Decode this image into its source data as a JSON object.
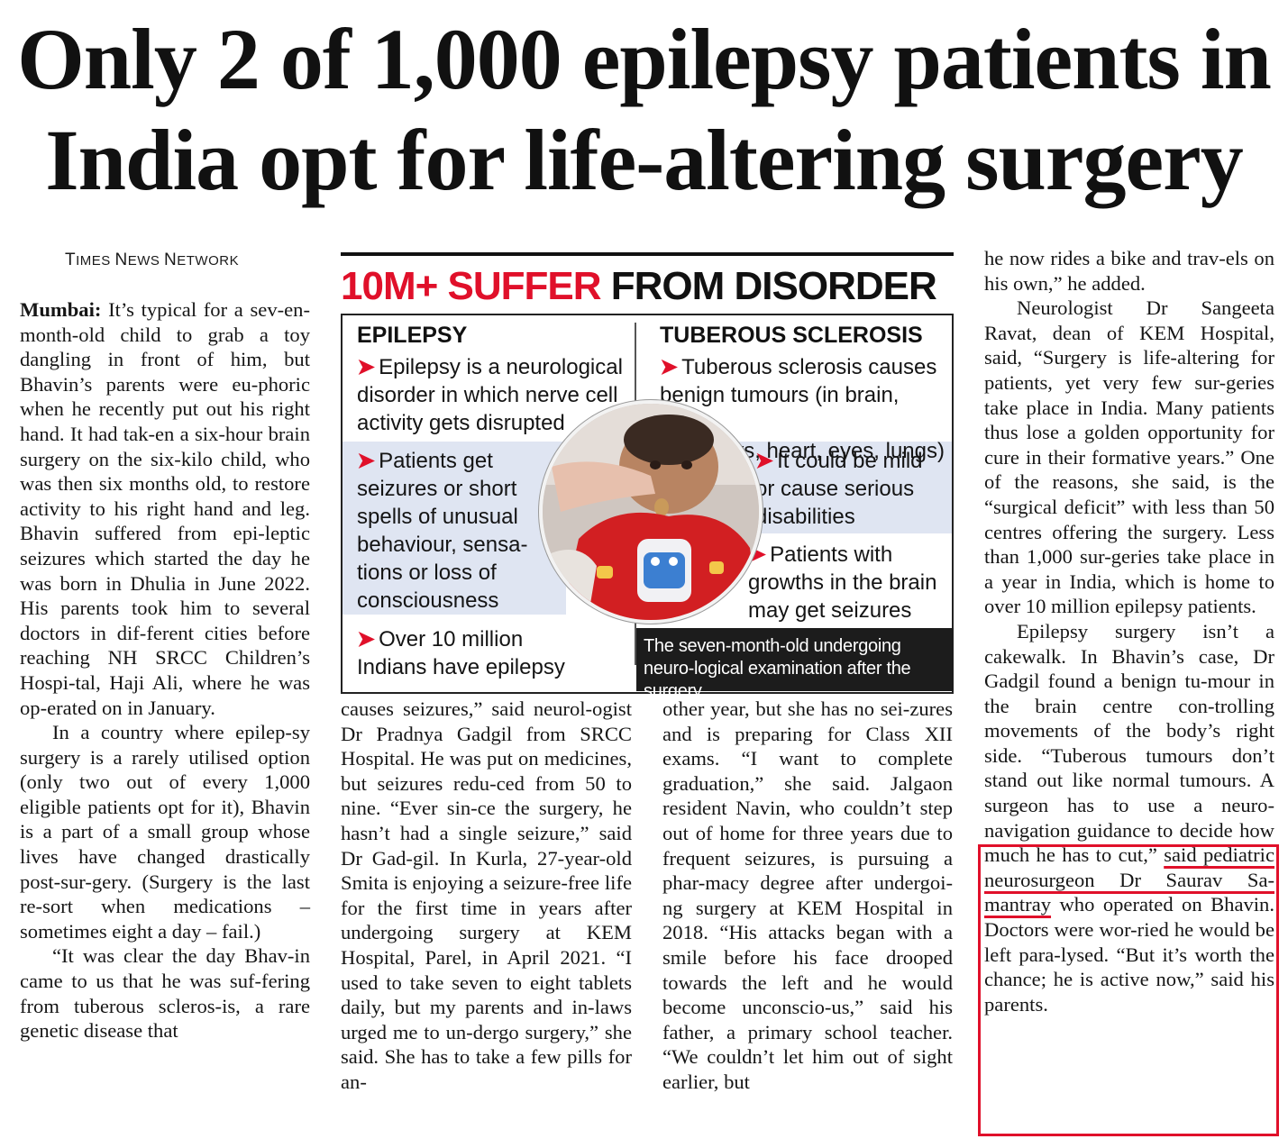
{
  "headline": "Only 2 of 1,000 epilepsy patients in India opt for life-altering surgery",
  "byline": {
    "first": "T",
    "rest": "IMES ",
    "n": "N",
    "ews": "EWS ",
    "w": "N",
    "etwork": "ETWORK"
  },
  "infobox": {
    "title_red": "10M+ SUFFER",
    "title_black": "FROM DISORDER",
    "epilepsy": {
      "heading": "EPILEPSY",
      "point1": "Epilepsy is a neurological disorder in which nerve cell activity gets disrupted",
      "point2": "Patients get seizures or short spells of unusual behaviour, sensa-tions or loss of consciousness",
      "point3": "Over 10 million Indians have epilepsy"
    },
    "ts": {
      "heading": "TUBEROUS SCLEROSIS",
      "point1a": "Tuberous sclerosis causes benign tumours (in brain, skin,",
      "point1b": "kidneys, heart, eyes, lungs)",
      "point2": "It could be mild or cause serious disabilities",
      "point3": "Patients with growths in the brain may get seizures"
    },
    "caption": "The seven-month-old undergoing neuro-logical examination after the surgery"
  },
  "body": {
    "dateline": "Mumbai:",
    "p1": "It’s typical for a sev-en-month-old child to grab a toy dangling in front of him, but Bhavin’s parents were eu-phoric when he recently put out his right hand. It had tak-en a six-hour brain surgery on the six-kilo child, who was then six months old, to restore activity to his right hand and leg. Bhavin suffered from epi-leptic seizures which started the day he was born in Dhulia in June 2022. His parents took him to several doctors in dif-ferent cities before reaching NH SRCC Children’s Hospi-tal, Haji Ali, where he was op-erated on in January.",
    "p2": "In a country where epilep-sy surgery is a rarely utilised option (only two out of every 1,000 eligible patients opt for it), Bhavin is a part of a small group whose lives have changed drastically post-sur-gery. (Surgery is the last re-sort when medications – sometimes eight a day – fail.)",
    "p3": "“It was clear the day Bhav-in came to us that he was suf-fering from tuberous scleros-is, a rare genetic disease that",
    "col2": "causes seizures,” said neurol-ogist Dr Pradnya Gadgil from SRCC Hospital. He was put on medicines, but seizures redu-ced from 50 to nine. “Ever sin-ce the surgery, he hasn’t had a single seizure,” said Dr Gad-gil. In Kurla, 27-year-old Smita is enjoying a seizure-free life for the first time in years after undergoing surgery at KEM Hospital, Parel, in April 2021. “I used to take seven to eight tablets daily, but my parents and in-laws urged me to un-dergo surgery,” she said. She has to take a few pills for an-",
    "col3": "other year, but she has no sei-zures and is preparing for Class XII exams. “I want to complete graduation,” she said. Jalgaon resident Navin, who couldn’t step out of home for three years due to frequent seizures, is pursuing a phar-macy degree after undergoi-ng surgery at KEM Hospital in 2018. “His attacks began with a smile before his face drooped towards the left and he would become unconscio-us,” said his father, a primary school teacher. “We couldn’t let him out of sight earlier, but",
    "c4p1": "he now rides a bike and trav-els on his own,” he added.",
    "c4p2": "Neurologist Dr Sangeeta Ravat, dean of KEM Hospital, said, “Surgery is life-altering for patients, yet very few sur-geries take place in India. Many patients thus lose a golden opportunity for cure in their formative years.” One of the reasons, she said, is the “surgical deficit” with less than 50 centres offering the surgery. Less than 1,000 sur-geries take place in a year in India, which is home to over 10 million epilepsy patients.",
    "c4p3a": "Epilepsy surgery isn’t a cakewalk. In Bhavin’s case, Dr Gadgil found a benign tu-mour in the brain centre con-trolling movements of the body’s right side. “Tuberous tumours don’t stand out like normal tumours. A surgeon has to use a neuro-navigation guidance to decide how much he has to cut,”",
    "c4p3u": "said pediatric neurosurgeon Dr Saurav Sa-mantray",
    "c4p3b": "who operated on Bhavin. Doctors were wor-ried he would be left para-lysed. “But it’s worth the chance; he is active now,” said his parents."
  }
}
